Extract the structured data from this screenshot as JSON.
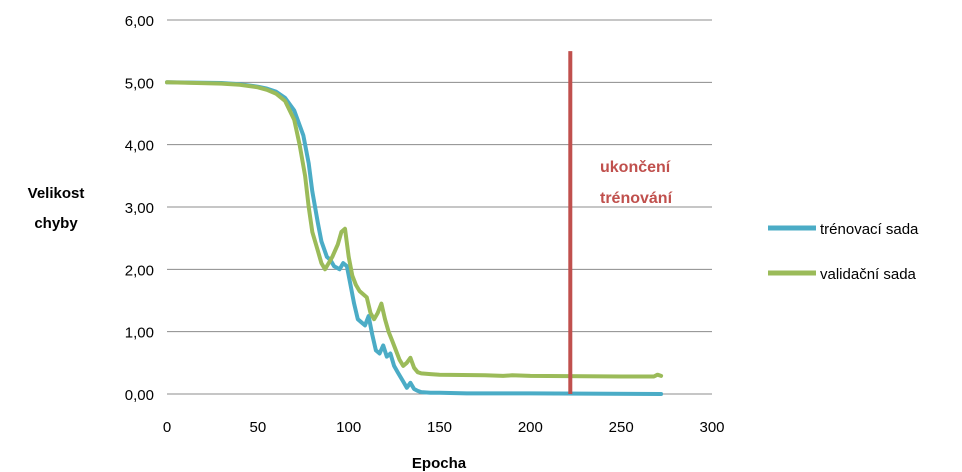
{
  "chart_data": {
    "type": "line",
    "xlabel": "Epocha",
    "ylabel": [
      "Velikost",
      "chyby"
    ],
    "xlim": [
      0,
      300
    ],
    "ylim": [
      0,
      6
    ],
    "x_ticks": [
      0,
      50,
      100,
      150,
      200,
      250,
      300
    ],
    "y_ticks": [
      0,
      1,
      2,
      3,
      4,
      5,
      6
    ],
    "x_tick_labels": [
      "0",
      "50",
      "100",
      "150",
      "200",
      "250",
      "300"
    ],
    "y_tick_labels": [
      "0,00",
      "1,00",
      "2,00",
      "3,00",
      "4,00",
      "5,00",
      "6,00"
    ],
    "grid": "horizontal",
    "legend_position": "right",
    "series": [
      {
        "name": "trénovací sada",
        "color": "#4bacc6",
        "points": [
          [
            0,
            5.0
          ],
          [
            30,
            4.99
          ],
          [
            40,
            4.97
          ],
          [
            50,
            4.93
          ],
          [
            55,
            4.9
          ],
          [
            60,
            4.85
          ],
          [
            65,
            4.75
          ],
          [
            70,
            4.55
          ],
          [
            75,
            4.15
          ],
          [
            78,
            3.7
          ],
          [
            80,
            3.25
          ],
          [
            83,
            2.75
          ],
          [
            85,
            2.45
          ],
          [
            88,
            2.2
          ],
          [
            90,
            2.15
          ],
          [
            92,
            2.05
          ],
          [
            95,
            2.0
          ],
          [
            97,
            2.1
          ],
          [
            99,
            2.05
          ],
          [
            101,
            1.75
          ],
          [
            103,
            1.45
          ],
          [
            105,
            1.2
          ],
          [
            107,
            1.15
          ],
          [
            109,
            1.1
          ],
          [
            111,
            1.25
          ],
          [
            113,
            0.95
          ],
          [
            115,
            0.7
          ],
          [
            117,
            0.65
          ],
          [
            119,
            0.78
          ],
          [
            121,
            0.6
          ],
          [
            123,
            0.65
          ],
          [
            125,
            0.45
          ],
          [
            127,
            0.35
          ],
          [
            130,
            0.2
          ],
          [
            132,
            0.1
          ],
          [
            134,
            0.18
          ],
          [
            136,
            0.08
          ],
          [
            138,
            0.05
          ],
          [
            140,
            0.03
          ],
          [
            145,
            0.02
          ],
          [
            150,
            0.02
          ],
          [
            165,
            0.01
          ],
          [
            200,
            0.01
          ],
          [
            272,
            0.0
          ]
        ]
      },
      {
        "name": "validační sada",
        "color": "#9bbb59",
        "points": [
          [
            0,
            5.0
          ],
          [
            30,
            4.98
          ],
          [
            40,
            4.96
          ],
          [
            50,
            4.92
          ],
          [
            55,
            4.88
          ],
          [
            60,
            4.82
          ],
          [
            65,
            4.7
          ],
          [
            70,
            4.4
          ],
          [
            73,
            4.0
          ],
          [
            76,
            3.5
          ],
          [
            78,
            3.0
          ],
          [
            80,
            2.6
          ],
          [
            83,
            2.3
          ],
          [
            85,
            2.1
          ],
          [
            87,
            2.0
          ],
          [
            89,
            2.1
          ],
          [
            91,
            2.2
          ],
          [
            94,
            2.4
          ],
          [
            96,
            2.6
          ],
          [
            98,
            2.65
          ],
          [
            100,
            2.2
          ],
          [
            102,
            1.9
          ],
          [
            104,
            1.75
          ],
          [
            106,
            1.65
          ],
          [
            108,
            1.6
          ],
          [
            110,
            1.55
          ],
          [
            112,
            1.3
          ],
          [
            114,
            1.2
          ],
          [
            116,
            1.3
          ],
          [
            118,
            1.45
          ],
          [
            120,
            1.2
          ],
          [
            122,
            1.0
          ],
          [
            124,
            0.85
          ],
          [
            126,
            0.7
          ],
          [
            128,
            0.55
          ],
          [
            130,
            0.45
          ],
          [
            132,
            0.5
          ],
          [
            134,
            0.58
          ],
          [
            136,
            0.42
          ],
          [
            138,
            0.35
          ],
          [
            140,
            0.33
          ],
          [
            145,
            0.32
          ],
          [
            150,
            0.31
          ],
          [
            175,
            0.3
          ],
          [
            185,
            0.29
          ],
          [
            190,
            0.3
          ],
          [
            200,
            0.29
          ],
          [
            250,
            0.28
          ],
          [
            268,
            0.28
          ],
          [
            270,
            0.31
          ],
          [
            272,
            0.29
          ]
        ]
      }
    ],
    "annotations": [
      {
        "type": "vertical-line",
        "x": 222,
        "y_top": 5.5,
        "color": "#c0504d"
      }
    ]
  },
  "annotation_text": [
    "ukončení",
    "trénování"
  ],
  "legend": [
    {
      "label": "trénovací sada"
    },
    {
      "label": "validační sada"
    }
  ]
}
